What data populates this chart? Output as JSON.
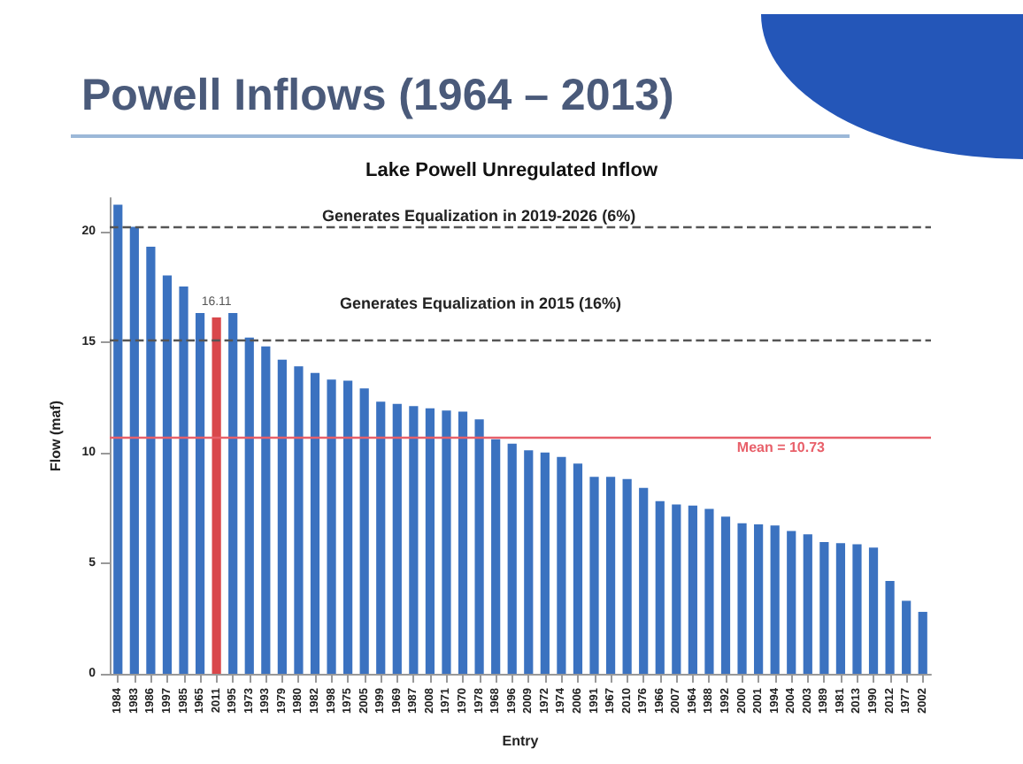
{
  "chart_data": {
    "type": "bar",
    "title": "Powell Inflows (1964 – 2013)",
    "subtitle": "Lake Powell Unregulated Inflow",
    "xlabel": "Entry",
    "ylabel": "Flow (maf)",
    "categories": [
      "1984",
      "1983",
      "1986",
      "1997",
      "1985",
      "1965",
      "2011",
      "1995",
      "1973",
      "1993",
      "1979",
      "1980",
      "1982",
      "1998",
      "1975",
      "2005",
      "1999",
      "1969",
      "1987",
      "2008",
      "1971",
      "1970",
      "1978",
      "1968",
      "1996",
      "2009",
      "1972",
      "1974",
      "2006",
      "1991",
      "1967",
      "2010",
      "1976",
      "1966",
      "2007",
      "1964",
      "1988",
      "1992",
      "2000",
      "2001",
      "1994",
      "2004",
      "2003",
      "1989",
      "1981",
      "2013",
      "1990",
      "2012",
      "1977",
      "2002"
    ],
    "values": [
      21.2,
      20.2,
      19.3,
      18.0,
      17.5,
      16.3,
      16.11,
      16.3,
      15.2,
      14.8,
      14.2,
      13.9,
      13.6,
      13.3,
      13.25,
      12.9,
      12.3,
      12.2,
      12.1,
      12.0,
      11.9,
      11.85,
      11.5,
      10.6,
      10.4,
      10.1,
      10.0,
      9.8,
      9.5,
      8.9,
      8.9,
      8.8,
      8.4,
      7.8,
      7.65,
      7.6,
      7.45,
      7.1,
      6.8,
      6.75,
      6.7,
      6.45,
      6.3,
      5.95,
      5.9,
      5.85,
      5.7,
      4.2,
      3.3,
      2.8
    ],
    "colors": [
      "#3b72c0",
      "#3b72c0",
      "#3b72c0",
      "#3b72c0",
      "#3b72c0",
      "#3b72c0",
      "#d9474b",
      "#3b72c0",
      "#3b72c0",
      "#3b72c0",
      "#3b72c0",
      "#3b72c0",
      "#3b72c0",
      "#3b72c0",
      "#3b72c0",
      "#3b72c0",
      "#3b72c0",
      "#3b72c0",
      "#3b72c0",
      "#3b72c0",
      "#3b72c0",
      "#3b72c0",
      "#3b72c0",
      "#3b72c0",
      "#3b72c0",
      "#3b72c0",
      "#3b72c0",
      "#3b72c0",
      "#3b72c0",
      "#3b72c0",
      "#3b72c0",
      "#3b72c0",
      "#3b72c0",
      "#3b72c0",
      "#3b72c0",
      "#3b72c0",
      "#3b72c0",
      "#3b72c0",
      "#3b72c0",
      "#3b72c0",
      "#3b72c0",
      "#3b72c0",
      "#3b72c0",
      "#3b72c0",
      "#3b72c0",
      "#3b72c0",
      "#3b72c0",
      "#3b72c0",
      "#3b72c0",
      "#3b72c0"
    ],
    "value_labels": [
      null,
      null,
      null,
      null,
      null,
      null,
      "16.11",
      null,
      null,
      null,
      null,
      null,
      null,
      null,
      null,
      null,
      null,
      null,
      null,
      null,
      null,
      null,
      null,
      null,
      null,
      null,
      null,
      null,
      null,
      null,
      null,
      null,
      null,
      null,
      null,
      null,
      null,
      null,
      null,
      null,
      null,
      null,
      null,
      null,
      null,
      null,
      null,
      null,
      null,
      null
    ],
    "ylim": [
      0,
      21.5
    ],
    "yticks": [
      0,
      5,
      10,
      15,
      20
    ],
    "grid": false,
    "ref_lines": [
      {
        "axis": "y",
        "value": 20.2,
        "label": "Generates Equalization in 2019-2026 (6%)",
        "color": "#555555",
        "line_style": "dashed"
      },
      {
        "axis": "y",
        "value": 15.1,
        "label": "Generates Equalization in 2015 (16%)",
        "color": "#555555",
        "line_style": "dashed"
      },
      {
        "axis": "y",
        "value": 10.73,
        "label": "Mean = 10.73",
        "color": "#e8606a",
        "line_style": "solid"
      }
    ]
  }
}
